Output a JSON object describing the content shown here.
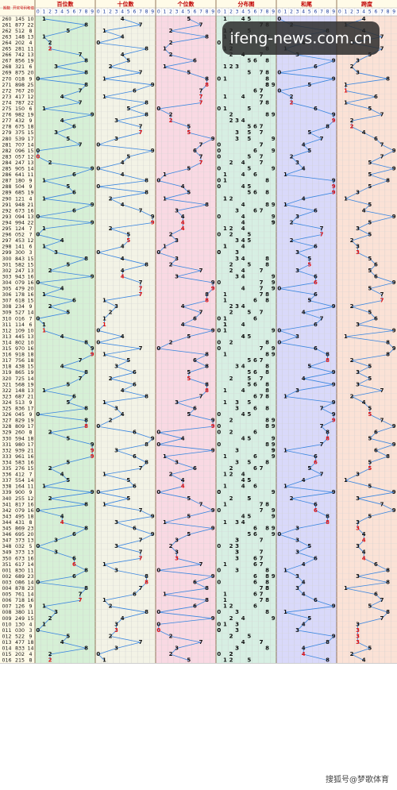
{
  "table": {
    "columns": [
      "期数",
      "开奖号码",
      "和值"
    ],
    "zones": [
      "百位数",
      "十位数",
      "个位数",
      "分布图",
      "和尾",
      "跨度"
    ],
    "digits": [
      0,
      1,
      2,
      3,
      4,
      5,
      6,
      7,
      8,
      9
    ],
    "rows": [
      [
        "260",
        "145",
        10,
        1,
        4,
        5,
        0,
        4
      ],
      [
        "261",
        "877",
        22,
        8,
        7,
        7,
        2,
        1
      ],
      [
        "262",
        "512",
        8,
        5,
        1,
        2,
        8,
        4
      ],
      [
        "263",
        "148",
        13,
        1,
        4,
        8,
        3,
        7
      ],
      [
        "264",
        "202",
        4,
        2,
        0,
        2,
        4,
        2
      ],
      [
        "265",
        "281",
        11,
        2,
        8,
        1,
        1,
        7
      ],
      [
        "266",
        "742",
        13,
        7,
        4,
        2,
        3,
        5
      ],
      [
        "267",
        "856",
        19,
        8,
        5,
        6,
        9,
        3
      ],
      [
        "268",
        "321",
        6,
        3,
        2,
        1,
        6,
        2
      ],
      [
        "269",
        "875",
        20,
        8,
        7,
        5,
        0,
        3
      ],
      [
        "270",
        "018",
        9,
        0,
        1,
        8,
        9,
        8
      ],
      [
        "271",
        "898",
        25,
        8,
        9,
        8,
        5,
        1
      ],
      [
        "272",
        "767",
        20,
        7,
        6,
        7,
        0,
        1
      ],
      [
        "273",
        "417",
        12,
        4,
        1,
        7,
        2,
        6
      ],
      [
        "274",
        "787",
        22,
        7,
        8,
        7,
        2,
        1
      ],
      [
        "275",
        "150",
        6,
        1,
        5,
        0,
        6,
        5
      ],
      [
        "276",
        "982",
        19,
        9,
        8,
        2,
        9,
        7
      ],
      [
        "277",
        "432",
        9,
        4,
        3,
        2,
        9,
        2
      ],
      [
        "278",
        "675",
        18,
        6,
        7,
        5,
        8,
        2
      ],
      [
        "279",
        "375",
        15,
        3,
        7,
        5,
        5,
        4
      ],
      [
        "280",
        "539",
        17,
        5,
        3,
        9,
        7,
        6
      ],
      [
        "281",
        "707",
        14,
        7,
        0,
        7,
        4,
        7
      ],
      [
        "282",
        "096",
        15,
        0,
        9,
        6,
        5,
        9
      ],
      [
        "283",
        "057",
        12,
        0,
        5,
        7,
        2,
        7
      ],
      [
        "284",
        "247",
        13,
        2,
        4,
        7,
        3,
        5
      ],
      [
        "285",
        "905",
        14,
        9,
        0,
        5,
        4,
        9
      ],
      [
        "286",
        "641",
        11,
        6,
        4,
        1,
        1,
        5
      ],
      [
        "287",
        "180",
        9,
        1,
        8,
        0,
        9,
        8
      ],
      [
        "288",
        "504",
        9,
        5,
        0,
        4,
        9,
        5
      ],
      [
        "289",
        "685",
        19,
        6,
        8,
        5,
        9,
        3
      ],
      [
        "290",
        "121",
        4,
        1,
        2,
        1,
        4,
        1
      ],
      [
        "291",
        "948",
        21,
        9,
        4,
        8,
        1,
        5
      ],
      [
        "292",
        "673",
        16,
        6,
        7,
        3,
        6,
        4
      ],
      [
        "293",
        "094",
        13,
        0,
        9,
        4,
        3,
        9
      ],
      [
        "294",
        "994",
        22,
        9,
        9,
        4,
        2,
        5
      ],
      [
        "295",
        "124",
        7,
        1,
        2,
        4,
        7,
        3
      ],
      [
        "296",
        "052",
        7,
        0,
        5,
        2,
        7,
        5
      ],
      [
        "297",
        "453",
        12,
        4,
        5,
        3,
        2,
        2
      ],
      [
        "298",
        "141",
        6,
        1,
        4,
        1,
        6,
        3
      ],
      [
        "299",
        "300",
        3,
        3,
        0,
        0,
        3,
        3
      ],
      [
        "300",
        "843",
        15,
        8,
        4,
        3,
        5,
        5
      ],
      [
        "301",
        "582",
        15,
        5,
        8,
        2,
        5,
        6
      ],
      [
        "302",
        "247",
        13,
        2,
        4,
        7,
        3,
        5
      ],
      [
        "303",
        "943",
        16,
        9,
        4,
        3,
        6,
        6
      ],
      [
        "304",
        "079",
        16,
        0,
        7,
        9,
        6,
        9
      ],
      [
        "305",
        "479",
        20,
        4,
        7,
        9,
        0,
        5
      ],
      [
        "306",
        "178",
        16,
        1,
        7,
        8,
        6,
        7
      ],
      [
        "307",
        "618",
        15,
        6,
        1,
        8,
        5,
        7
      ],
      [
        "308",
        "234",
        9,
        2,
        3,
        4,
        9,
        2
      ],
      [
        "309",
        "527",
        14,
        5,
        2,
        7,
        4,
        5
      ],
      [
        "310",
        "016",
        7,
        0,
        1,
        6,
        7,
        6
      ],
      [
        "311",
        "114",
        6,
        1,
        1,
        4,
        6,
        3
      ],
      [
        "312",
        "109",
        10,
        1,
        0,
        9,
        0,
        9
      ],
      [
        "313",
        "445",
        13,
        4,
        4,
        5,
        3,
        1
      ],
      [
        "314",
        "802",
        10,
        8,
        0,
        2,
        0,
        8
      ],
      [
        "315",
        "970",
        16,
        9,
        7,
        0,
        6,
        9
      ],
      [
        "316",
        "918",
        18,
        9,
        1,
        8,
        8,
        8
      ],
      [
        "317",
        "756",
        18,
        7,
        5,
        6,
        8,
        2
      ],
      [
        "318",
        "438",
        15,
        4,
        3,
        8,
        5,
        5
      ],
      [
        "319",
        "865",
        19,
        8,
        6,
        5,
        9,
        3
      ],
      [
        "320",
        "725",
        14,
        7,
        2,
        5,
        4,
        5
      ],
      [
        "321",
        "568",
        19,
        5,
        6,
        8,
        9,
        3
      ],
      [
        "322",
        "148",
        13,
        1,
        4,
        8,
        3,
        7
      ],
      [
        "323",
        "687",
        21,
        6,
        8,
        7,
        1,
        2
      ],
      [
        "324",
        "513",
        9,
        5,
        1,
        3,
        9,
        4
      ],
      [
        "325",
        "836",
        17,
        8,
        3,
        6,
        7,
        5
      ],
      [
        "326",
        "045",
        9,
        0,
        4,
        5,
        9,
        5
      ],
      [
        "327",
        "829",
        19,
        8,
        2,
        9,
        9,
        7
      ],
      [
        "328",
        "809",
        17,
        8,
        0,
        9,
        7,
        9
      ],
      [
        "329",
        "260",
        8,
        2,
        6,
        0,
        8,
        6
      ],
      [
        "330",
        "594",
        18,
        5,
        9,
        4,
        8,
        5
      ],
      [
        "331",
        "980",
        17,
        9,
        8,
        0,
        7,
        9
      ],
      [
        "332",
        "939",
        21,
        9,
        3,
        9,
        1,
        6
      ],
      [
        "333",
        "961",
        16,
        9,
        6,
        1,
        6,
        8
      ],
      [
        "334",
        "583",
        16,
        5,
        8,
        3,
        6,
        5
      ],
      [
        "335",
        "276",
        15,
        2,
        7,
        6,
        5,
        5
      ],
      [
        "336",
        "412",
        7,
        4,
        1,
        2,
        7,
        3
      ],
      [
        "337",
        "554",
        14,
        5,
        5,
        4,
        4,
        1
      ],
      [
        "338",
        "164",
        11,
        1,
        6,
        4,
        1,
        5
      ],
      [
        "339",
        "900",
        9,
        9,
        0,
        0,
        9,
        9
      ],
      [
        "340",
        "255",
        12,
        2,
        5,
        5,
        2,
        3
      ],
      [
        "341",
        "817",
        16,
        8,
        1,
        7,
        6,
        7
      ],
      [
        "342",
        "079",
        16,
        0,
        7,
        9,
        6,
        9
      ],
      [
        "343",
        "495",
        18,
        4,
        9,
        5,
        8,
        5
      ],
      [
        "344",
        "431",
        8,
        4,
        3,
        1,
        8,
        3
      ],
      [
        "345",
        "869",
        23,
        8,
        6,
        9,
        3,
        3
      ],
      [
        "346",
        "695",
        20,
        6,
        9,
        5,
        0,
        4
      ],
      [
        "347",
        "373",
        13,
        3,
        7,
        3,
        3,
        4
      ],
      [
        "348",
        "032",
        5,
        0,
        3,
        2,
        5,
        3
      ],
      [
        "349",
        "373",
        13,
        3,
        7,
        3,
        3,
        4
      ],
      [
        "350",
        "673",
        16,
        6,
        7,
        3,
        6,
        4
      ],
      [
        "351",
        "617",
        14,
        6,
        1,
        7,
        4,
        6
      ],
      [
        "001",
        "830",
        11,
        8,
        3,
        0,
        1,
        8
      ],
      [
        "002",
        "689",
        23,
        6,
        8,
        9,
        3,
        3
      ],
      [
        "003",
        "086",
        14,
        0,
        8,
        6,
        4,
        8
      ],
      [
        "004",
        "878",
        23,
        8,
        7,
        8,
        3,
        1
      ],
      [
        "005",
        "761",
        14,
        7,
        6,
        1,
        4,
        6
      ],
      [
        "006",
        "718",
        16,
        7,
        1,
        8,
        6,
        7
      ],
      [
        "007",
        "126",
        9,
        1,
        2,
        6,
        9,
        5
      ],
      [
        "008",
        "380",
        11,
        3,
        8,
        0,
        1,
        8
      ],
      [
        "009",
        "249",
        15,
        2,
        4,
        9,
        5,
        7
      ],
      [
        "010",
        "130",
        4,
        1,
        3,
        0,
        4,
        3
      ],
      [
        "011",
        "030",
        3,
        0,
        3,
        0,
        3,
        3
      ],
      [
        "012",
        "522",
        9,
        5,
        2,
        2,
        9,
        3
      ],
      [
        "013",
        "477",
        18,
        4,
        7,
        7,
        8,
        3
      ],
      [
        "014",
        "833",
        14,
        8,
        3,
        3,
        4,
        5
      ],
      [
        "015",
        "202",
        4,
        2,
        0,
        2,
        4,
        2
      ],
      [
        "016",
        "215",
        8,
        2,
        1,
        5,
        8,
        4
      ]
    ]
  },
  "watermarks": [
    "ifeng-news.com.cn",
    "搜狐号@梦歌体育"
  ]
}
